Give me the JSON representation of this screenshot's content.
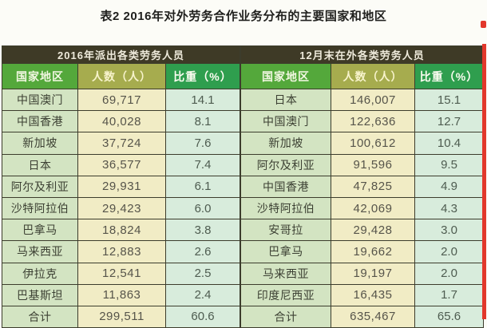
{
  "title": "表2  2016年对外劳务合作业务分布的主要国家和地区",
  "colors": {
    "section_header_bg": "#3e3a26",
    "country_header_bg": "#54a83b",
    "count_header_bg": "#a6ac4e",
    "share_header_bg": "#2f9e4e",
    "country_cell_bg": "#d3e4c2",
    "count_cell_bg": "#f1ecc5",
    "share_cell_bg": "#d8ecdc",
    "grid_border": "#3c3c2c",
    "red_edge_line": "#e2372b"
  },
  "table": {
    "sections": [
      {
        "header": "2016年派出各类劳务人员",
        "columns": [
          "国家地区",
          "人数（人）",
          "比重（%）"
        ],
        "rows": [
          [
            "中国澳门",
            "69,717",
            "14.1"
          ],
          [
            "中国香港",
            "40,028",
            "8.1"
          ],
          [
            "新加坡",
            "37,724",
            "7.6"
          ],
          [
            "日本",
            "36,577",
            "7.4"
          ],
          [
            "阿尔及利亚",
            "29,931",
            "6.1"
          ],
          [
            "沙特阿拉伯",
            "29,423",
            "6.0"
          ],
          [
            "巴拿马",
            "18,824",
            "3.8"
          ],
          [
            "马来西亚",
            "12,883",
            "2.6"
          ],
          [
            "伊拉克",
            "12,541",
            "2.5"
          ],
          [
            "巴基斯坦",
            "11,863",
            "2.4"
          ]
        ],
        "total_row": [
          "合计",
          "299,511",
          "60.6"
        ]
      },
      {
        "header": "12月末在外各类劳务人员",
        "columns": [
          "国家地区",
          "人数（人）",
          "比重（%）"
        ],
        "rows": [
          [
            "日本",
            "146,007",
            "15.1"
          ],
          [
            "中国澳门",
            "122,636",
            "12.7"
          ],
          [
            "新加坡",
            "100,612",
            "10.4"
          ],
          [
            "阿尔及利亚",
            "91,596",
            "9.5"
          ],
          [
            "中国香港",
            "47,825",
            "4.9"
          ],
          [
            "沙特阿拉伯",
            "42,069",
            "4.3"
          ],
          [
            "安哥拉",
            "29,428",
            "3.0"
          ],
          [
            "巴拿马",
            "19,662",
            "2.0"
          ],
          [
            "马来西亚",
            "19,197",
            "2.0"
          ],
          [
            "印度尼西亚",
            "16,435",
            "1.7"
          ]
        ],
        "total_row": [
          "合计",
          "635,467",
          "65.6"
        ]
      }
    ]
  }
}
